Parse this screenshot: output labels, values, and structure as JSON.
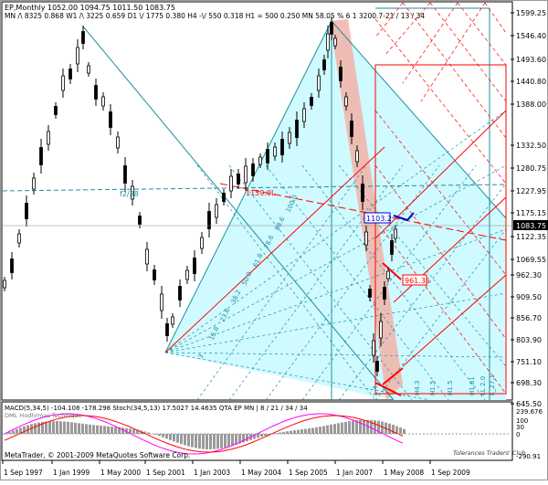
{
  "header": {
    "symbol_line": "EP,Monthly  1052.00 1094.75 1011.50 1083.75",
    "levels_line": "MN /\\ 8325    0.868  W1 /\\ 3225    0.659  D1 \\/ 1775    0.380  H4 -\\/ 550    0.318  H1 = 500    0.250  MN  58.05 %  6  1 3200.7-21 / 13 / 34"
  },
  "price_axis": {
    "labels": [
      "1599.25",
      "1546.40",
      "1493.60",
      "1440.80",
      "1388.00",
      "1332.50",
      "1280.75",
      "1227.95",
      "1175.15",
      "1122.35",
      "1069.55",
      "962.30",
      "909.50",
      "856.70",
      "803.90",
      "751.10",
      "698.30",
      "645.50"
    ],
    "current_price": "1083.75"
  },
  "time_axis": {
    "labels": [
      "1 Sep 1997",
      "1 Jan 1999",
      "1 May 2000",
      "1 Sep 2001",
      "1 Jan 2003",
      "1 May 2004",
      "1 Sep 2005",
      "1 Jan 2007",
      "1 May 2008",
      "1 Sep 2009"
    ]
  },
  "annotations": {
    "box_1": "1103.2",
    "box_2": "961.35",
    "label_1159": "1159.0L",
    "label_f2": "f2/38",
    "fib_rays": [
      "3",
      "15.8",
      "23.6",
      "38.2",
      "50.0",
      "61.8",
      "78.6",
      "88.6",
      "100.0"
    ],
    "vertical_labels": [
      "L-4",
      "H4.3",
      "H1.5",
      "H1.5",
      "H1.61",
      "LL 2.0",
      "L_27.1"
    ]
  },
  "indicator": {
    "title": "MACD(5,34,5) -104.108 -178.298  Stoch(34,5,13) 17.5027 14.4635  QTA EP MN | 8 / 21 / 34 / 34",
    "subtitle": "DML Hodhrmas Technique",
    "scale": [
      "239.676",
      "100",
      "30",
      "0",
      "-290.91"
    ]
  },
  "footer": {
    "copyright": "MetaTrader, © 2001-2009 MetaQuotes Software Corp.",
    "signature": "Tolerances Traders' Club"
  },
  "colors": {
    "bull": "#000000",
    "bear": "#000000",
    "cyan_fill": "#cffaff",
    "red_fill": "#f2b1a8",
    "red_line": "#ff0000",
    "blue_line": "#0000cc",
    "teal_line": "#1e8f9f"
  }
}
